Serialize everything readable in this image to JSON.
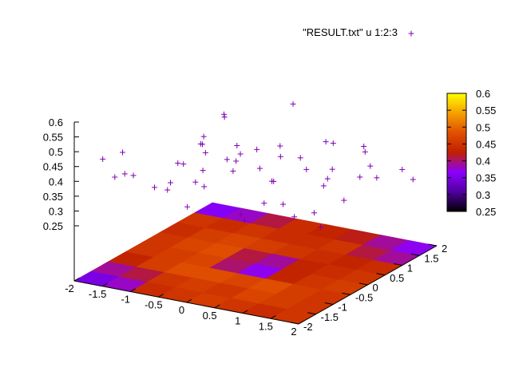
{
  "chart_data": {
    "type": "scatter",
    "legend": {
      "label": "\"RESULT.txt\" u 1:2:3",
      "marker": "+",
      "placement": "top-right"
    },
    "x_ticks": [
      "-2",
      "-1.5",
      "-1",
      "-0.5",
      "0",
      "0.5",
      "1",
      "1.5",
      "2"
    ],
    "y_ticks": [
      "-2",
      "-1.5",
      "-1",
      "-0.5",
      "0",
      "0.5",
      "1",
      "1.5",
      "2"
    ],
    "z_ticks": [
      "0.25",
      "0.3",
      "0.35",
      "0.4",
      "0.45",
      "0.5",
      "0.55",
      "0.6"
    ],
    "colorbar_ticks": [
      "0.25",
      "0.3",
      "0.35",
      "0.4",
      "0.45",
      "0.5",
      "0.55",
      "0.6"
    ],
    "xlim": [
      -2,
      2
    ],
    "ylim": [
      -2,
      2
    ],
    "zlim": [
      0.25,
      0.6
    ],
    "colormap": [
      "#000000",
      "#5000a0",
      "#8c00ff",
      "#c02000",
      "#e05000",
      "#f5a000",
      "#ffff00"
    ],
    "point_color": "#8000b0",
    "heatmap_grid": {
      "x": [
        -1.75,
        -1.25,
        -0.75,
        -0.25,
        0.25,
        0.75,
        1.25,
        1.75
      ],
      "y": [
        -1.75,
        -1.25,
        -0.75,
        -0.25,
        0.25,
        0.75,
        1.25,
        1.75
      ],
      "values": [
        [
          0.35,
          0.38,
          0.44,
          0.45,
          0.46,
          0.45,
          0.44,
          0.45
        ],
        [
          0.39,
          0.41,
          0.45,
          0.46,
          0.45,
          0.47,
          0.46,
          0.45
        ],
        [
          0.43,
          0.46,
          0.48,
          0.48,
          0.47,
          0.48,
          0.46,
          0.45
        ],
        [
          0.45,
          0.46,
          0.47,
          0.4,
          0.37,
          0.43,
          0.45,
          0.46
        ],
        [
          0.45,
          0.47,
          0.48,
          0.41,
          0.39,
          0.43,
          0.44,
          0.45
        ],
        [
          0.44,
          0.46,
          0.47,
          0.46,
          0.45,
          0.44,
          0.43,
          0.44
        ],
        [
          0.45,
          0.44,
          0.45,
          0.44,
          0.44,
          0.45,
          0.41,
          0.39
        ],
        [
          0.36,
          0.38,
          0.41,
          0.44,
          0.43,
          0.42,
          0.39,
          0.37
        ]
      ]
    },
    "points": [
      {
        "x": -2.0,
        "y": 1.8,
        "z": 0.35
      },
      {
        "x": -2.0,
        "y": 1.0,
        "z": 0.37
      },
      {
        "x": -1.9,
        "y": 1.6,
        "z": 0.24
      },
      {
        "x": -1.8,
        "y": -1.5,
        "z": 0.58
      },
      {
        "x": -1.7,
        "y": 0.3,
        "z": 0.36
      },
      {
        "x": -1.6,
        "y": 1.7,
        "z": 0.51
      },
      {
        "x": -1.5,
        "y": 0.9,
        "z": 0.47
      },
      {
        "x": -1.4,
        "y": -1.8,
        "z": 0.55
      },
      {
        "x": -1.3,
        "y": 1.2,
        "z": 0.57
      },
      {
        "x": -1.2,
        "y": -0.6,
        "z": 0.42
      },
      {
        "x": -1.1,
        "y": 0.2,
        "z": 0.54
      },
      {
        "x": -1.0,
        "y": -1.3,
        "z": 0.49
      },
      {
        "x": -0.9,
        "y": 1.5,
        "z": 0.43
      },
      {
        "x": -0.8,
        "y": -0.2,
        "z": 0.61
      },
      {
        "x": -0.7,
        "y": 0.6,
        "z": 0.52
      },
      {
        "x": -0.6,
        "y": -1.0,
        "z": 0.41
      },
      {
        "x": -0.5,
        "y": 1.9,
        "z": 0.59
      },
      {
        "x": -0.4,
        "y": 0.0,
        "z": 0.48
      },
      {
        "x": -0.3,
        "y": -1.6,
        "z": 0.63
      },
      {
        "x": -0.2,
        "y": 0.8,
        "z": 0.39
      },
      {
        "x": -0.1,
        "y": -0.4,
        "z": 0.56
      },
      {
        "x": 0.0,
        "y": 1.3,
        "z": 0.45
      },
      {
        "x": 0.1,
        "y": -1.9,
        "z": 0.6
      },
      {
        "x": 0.2,
        "y": 0.4,
        "z": 0.53
      },
      {
        "x": 0.3,
        "y": -0.8,
        "z": 0.38
      },
      {
        "x": 0.4,
        "y": 1.6,
        "z": 0.5
      },
      {
        "x": 0.5,
        "y": -0.1,
        "z": 0.62
      },
      {
        "x": 0.6,
        "y": -1.4,
        "z": 0.46
      },
      {
        "x": 0.7,
        "y": 0.9,
        "z": 0.57
      },
      {
        "x": 0.8,
        "y": -0.5,
        "z": 0.44
      },
      {
        "x": 0.9,
        "y": 1.1,
        "z": 0.34
      },
      {
        "x": 1.0,
        "y": -1.1,
        "z": 0.58
      },
      {
        "x": 1.1,
        "y": 0.3,
        "z": 0.49
      },
      {
        "x": 1.2,
        "y": -1.7,
        "z": 0.55
      },
      {
        "x": 1.3,
        "y": 1.4,
        "z": 0.42
      },
      {
        "x": 1.4,
        "y": -0.3,
        "z": 0.52
      },
      {
        "x": 1.5,
        "y": 0.7,
        "z": 0.6
      },
      {
        "x": 1.6,
        "y": -0.9,
        "z": 0.47
      },
      {
        "x": 1.7,
        "y": 1.8,
        "z": 0.4
      },
      {
        "x": 1.8,
        "y": 0.1,
        "z": 0.54
      },
      {
        "x": 1.9,
        "y": -1.2,
        "z": 0.45
      },
      {
        "x": 2.0,
        "y": 1.0,
        "z": 0.51
      },
      {
        "x": -1.9,
        "y": -0.7,
        "z": 0.46
      },
      {
        "x": -1.5,
        "y": -1.1,
        "z": 0.5
      },
      {
        "x": -1.0,
        "y": 0.8,
        "z": 0.44
      },
      {
        "x": -0.6,
        "y": 1.1,
        "z": 0.4
      },
      {
        "x": -0.2,
        "y": -1.2,
        "z": 0.58
      },
      {
        "x": 0.2,
        "y": 1.9,
        "z": 0.37
      },
      {
        "x": 0.6,
        "y": 0.5,
        "z": 0.49
      },
      {
        "x": 1.0,
        "y": 1.7,
        "z": 0.43
      },
      {
        "x": 1.4,
        "y": 0.9,
        "z": 0.56
      },
      {
        "x": 1.8,
        "y": -1.8,
        "z": 0.53
      },
      {
        "x": -1.2,
        "y": -1.9,
        "z": 0.66
      },
      {
        "x": 0.9,
        "y": -1.9,
        "z": 0.74
      }
    ]
  }
}
